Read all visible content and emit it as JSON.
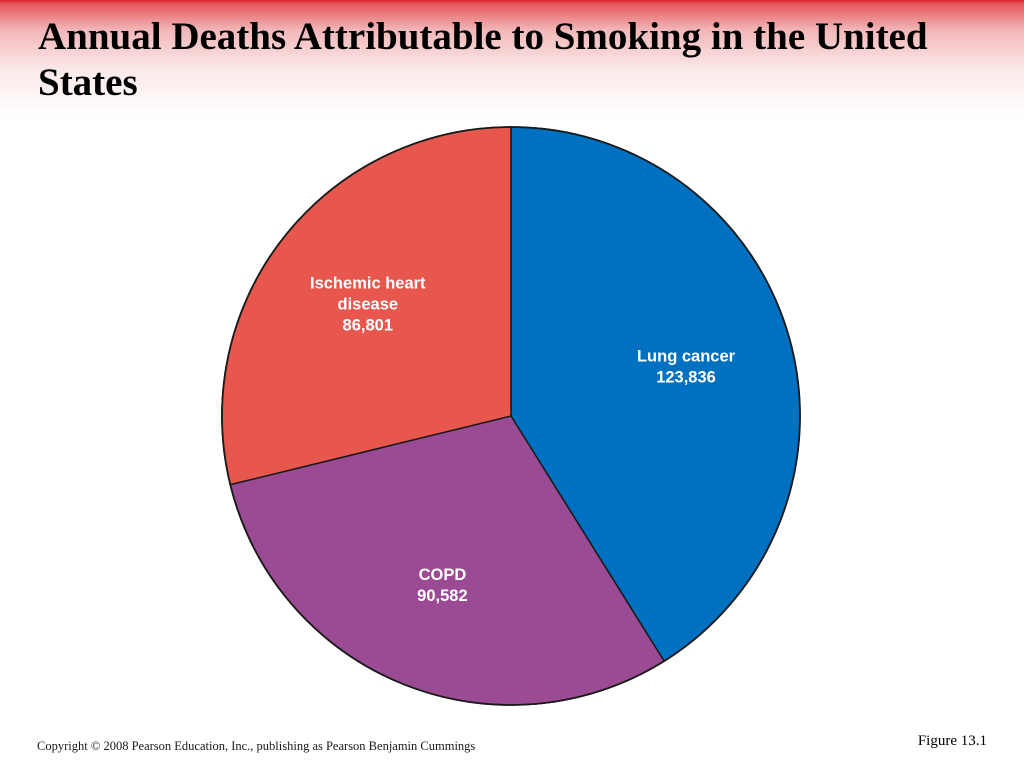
{
  "slide": {
    "title": "Annual Deaths Attributable to Smoking in the United States",
    "copyright": "Copyright © 2008 Pearson Education, Inc., publishing as Pearson Benjamin Cummings",
    "figure_label": "Figure 13.1"
  },
  "colors": {
    "header_band": "#d8262b",
    "outline": "#1a1a1a"
  },
  "chart_data": {
    "type": "pie",
    "title": "Annual Deaths Attributable to Smoking in the United States",
    "slices": [
      {
        "label_lines": [
          "Lung cancer"
        ],
        "value": 123836,
        "value_text": "123,836",
        "color": "#0070c0"
      },
      {
        "label_lines": [
          "COPD"
        ],
        "value": 90582,
        "value_text": "90,582",
        "color": "#9b4a94"
      },
      {
        "label_lines": [
          "Ischemic heart",
          "disease"
        ],
        "value": 86801,
        "value_text": "86,801",
        "color": "#e8574e"
      }
    ],
    "start": "12 o'clock",
    "direction": "clockwise",
    "legend": "none (labels inside slices)"
  }
}
